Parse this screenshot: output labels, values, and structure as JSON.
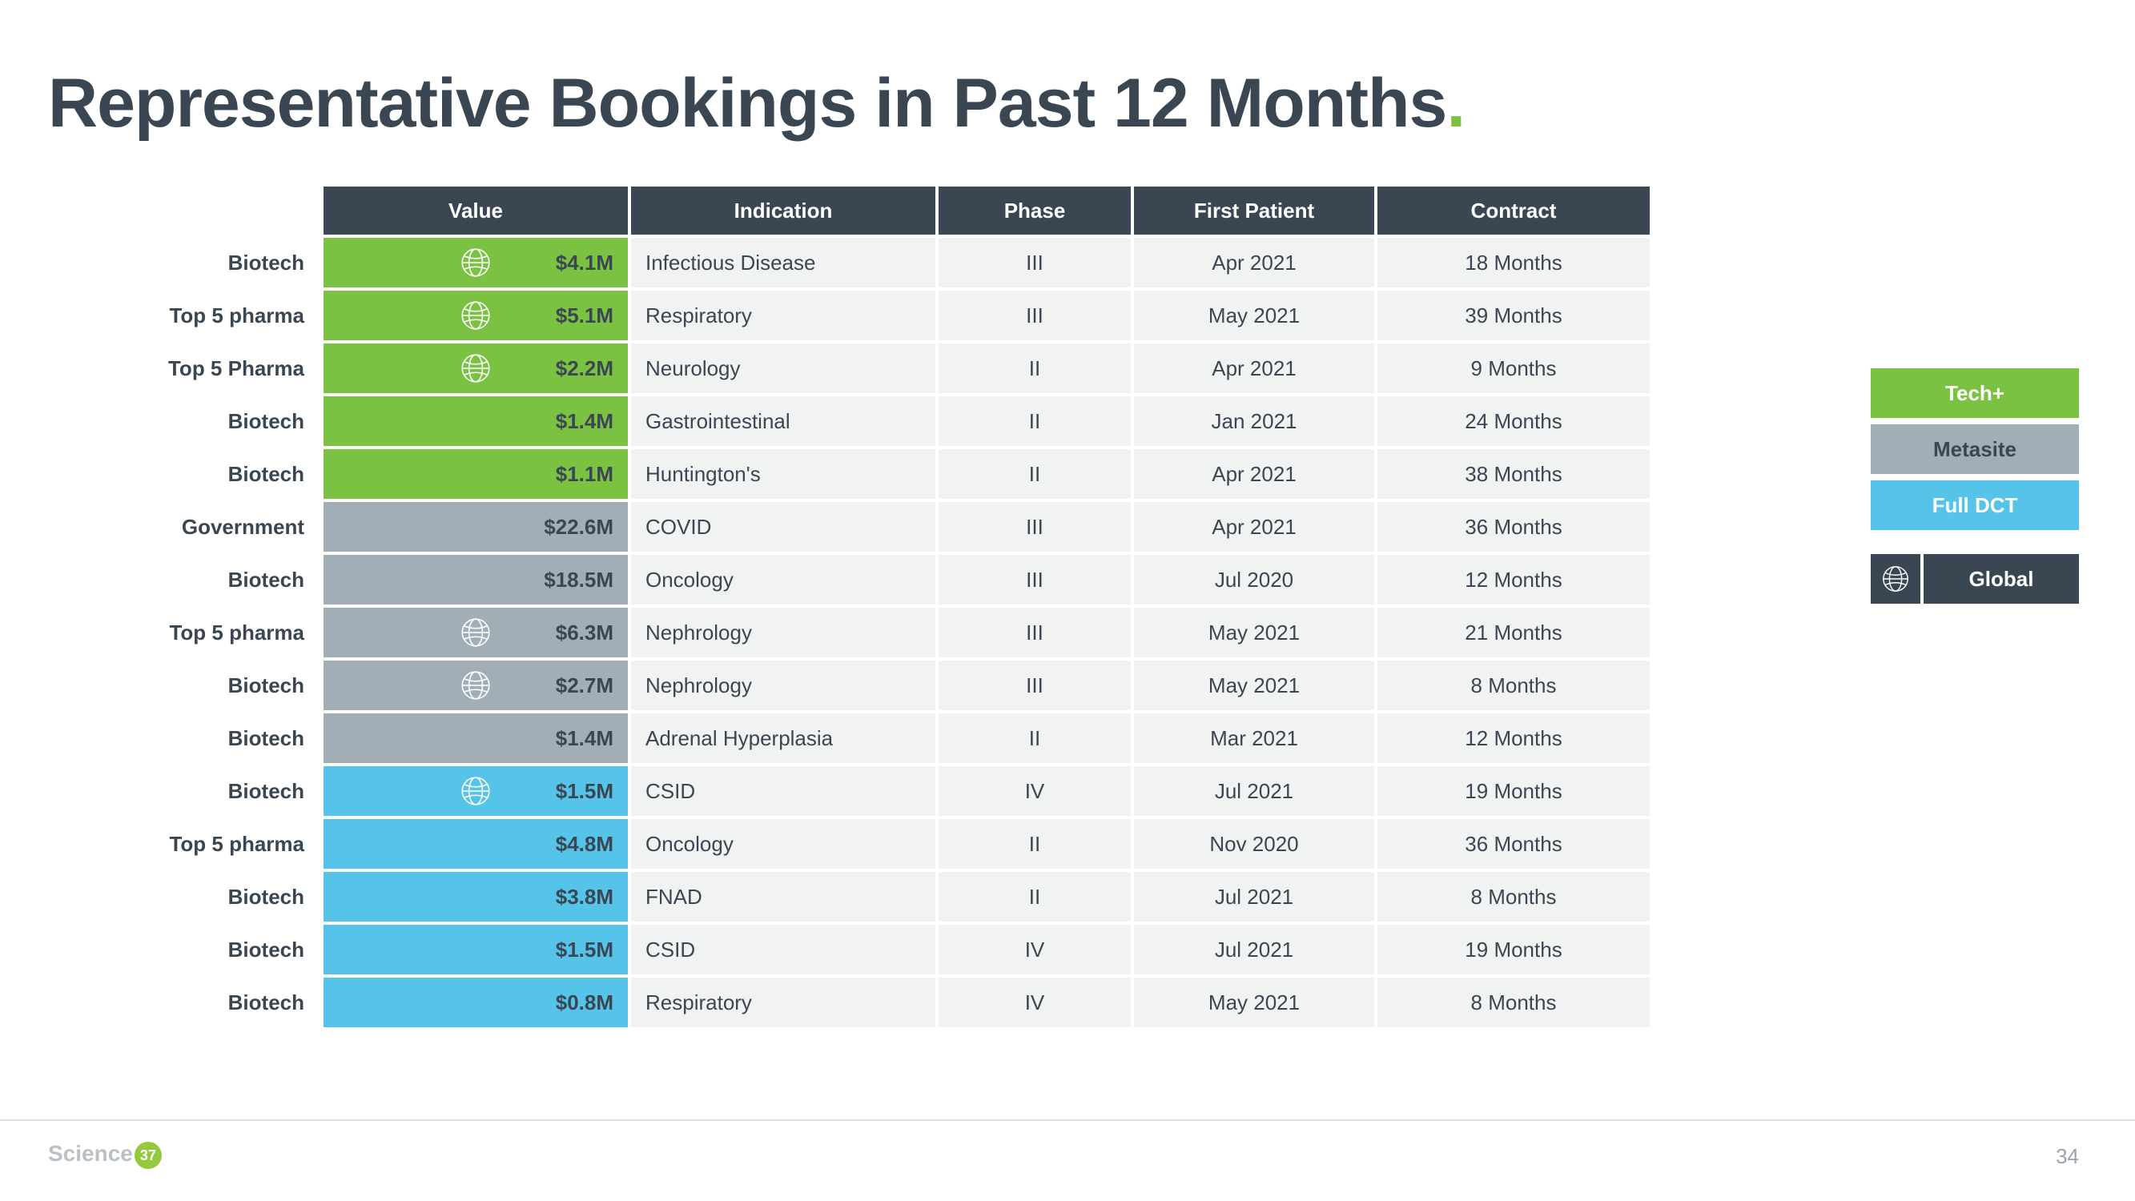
{
  "title_main": "Representative Bookings in Past 12 Months",
  "title_dot": ".",
  "columns": [
    "Value",
    "Indication",
    "Phase",
    "First Patient",
    "Contract"
  ],
  "colors": {
    "tech": "#7cc242",
    "metasite": "#a2aeb6",
    "dct": "#56c3e8",
    "header_bg": "#3a4752",
    "row_bg": "#f1f2f2",
    "text": "#3a4752"
  },
  "legend": {
    "tech": "Tech+",
    "metasite": "Metasite",
    "dct": "Full DCT",
    "global": "Global"
  },
  "rows": [
    {
      "label": "Biotech",
      "value": "$4.1M",
      "cat": "tech",
      "globe": true,
      "indication": "Infectious Disease",
      "phase": "III",
      "first": "Apr 2021",
      "contract": "18 Months"
    },
    {
      "label": "Top 5 pharma",
      "value": "$5.1M",
      "cat": "tech",
      "globe": true,
      "indication": "Respiratory",
      "phase": "III",
      "first": "May 2021",
      "contract": "39 Months"
    },
    {
      "label": "Top 5 Pharma",
      "value": "$2.2M",
      "cat": "tech",
      "globe": true,
      "indication": "Neurology",
      "phase": "II",
      "first": "Apr 2021",
      "contract": "9 Months"
    },
    {
      "label": "Biotech",
      "value": "$1.4M",
      "cat": "tech",
      "globe": false,
      "indication": "Gastrointestinal",
      "phase": "II",
      "first": "Jan 2021",
      "contract": "24 Months"
    },
    {
      "label": "Biotech",
      "value": "$1.1M",
      "cat": "tech",
      "globe": false,
      "indication": "Huntington's",
      "phase": "II",
      "first": "Apr 2021",
      "contract": "38 Months"
    },
    {
      "label": "Government",
      "value": "$22.6M",
      "cat": "meta",
      "globe": false,
      "indication": "COVID",
      "phase": "III",
      "first": "Apr 2021",
      "contract": "36 Months"
    },
    {
      "label": "Biotech",
      "value": "$18.5M",
      "cat": "meta",
      "globe": false,
      "indication": "Oncology",
      "phase": "III",
      "first": "Jul 2020",
      "contract": "12 Months"
    },
    {
      "label": "Top 5 pharma",
      "value": "$6.3M",
      "cat": "meta",
      "globe": true,
      "indication": "Nephrology",
      "phase": "III",
      "first": "May 2021",
      "contract": "21 Months"
    },
    {
      "label": "Biotech",
      "value": "$2.7M",
      "cat": "meta",
      "globe": true,
      "indication": "Nephrology",
      "phase": "III",
      "first": "May 2021",
      "contract": "8 Months"
    },
    {
      "label": "Biotech",
      "value": "$1.4M",
      "cat": "meta",
      "globe": false,
      "indication": "Adrenal Hyperplasia",
      "phase": "II",
      "first": "Mar 2021",
      "contract": "12 Months"
    },
    {
      "label": "Biotech",
      "value": "$1.5M",
      "cat": "dct",
      "globe": true,
      "indication": "CSID",
      "phase": "IV",
      "first": "Jul 2021",
      "contract": "19 Months"
    },
    {
      "label": "Top 5 pharma",
      "value": "$4.8M",
      "cat": "dct",
      "globe": false,
      "indication": "Oncology",
      "phase": "II",
      "first": "Nov 2020",
      "contract": "36 Months"
    },
    {
      "label": "Biotech",
      "value": "$3.8M",
      "cat": "dct",
      "globe": false,
      "indication": "FNAD",
      "phase": "II",
      "first": "Jul 2021",
      "contract": "8 Months"
    },
    {
      "label": "Biotech",
      "value": "$1.5M",
      "cat": "dct",
      "globe": false,
      "indication": "CSID",
      "phase": "IV",
      "first": "Jul 2021",
      "contract": "19 Months"
    },
    {
      "label": "Biotech",
      "value": "$0.8M",
      "cat": "dct",
      "globe": false,
      "indication": "Respiratory",
      "phase": "IV",
      "first": "May 2021",
      "contract": "8 Months"
    }
  ],
  "logo_text": "Science",
  "logo_badge": "37",
  "page_number": "34"
}
